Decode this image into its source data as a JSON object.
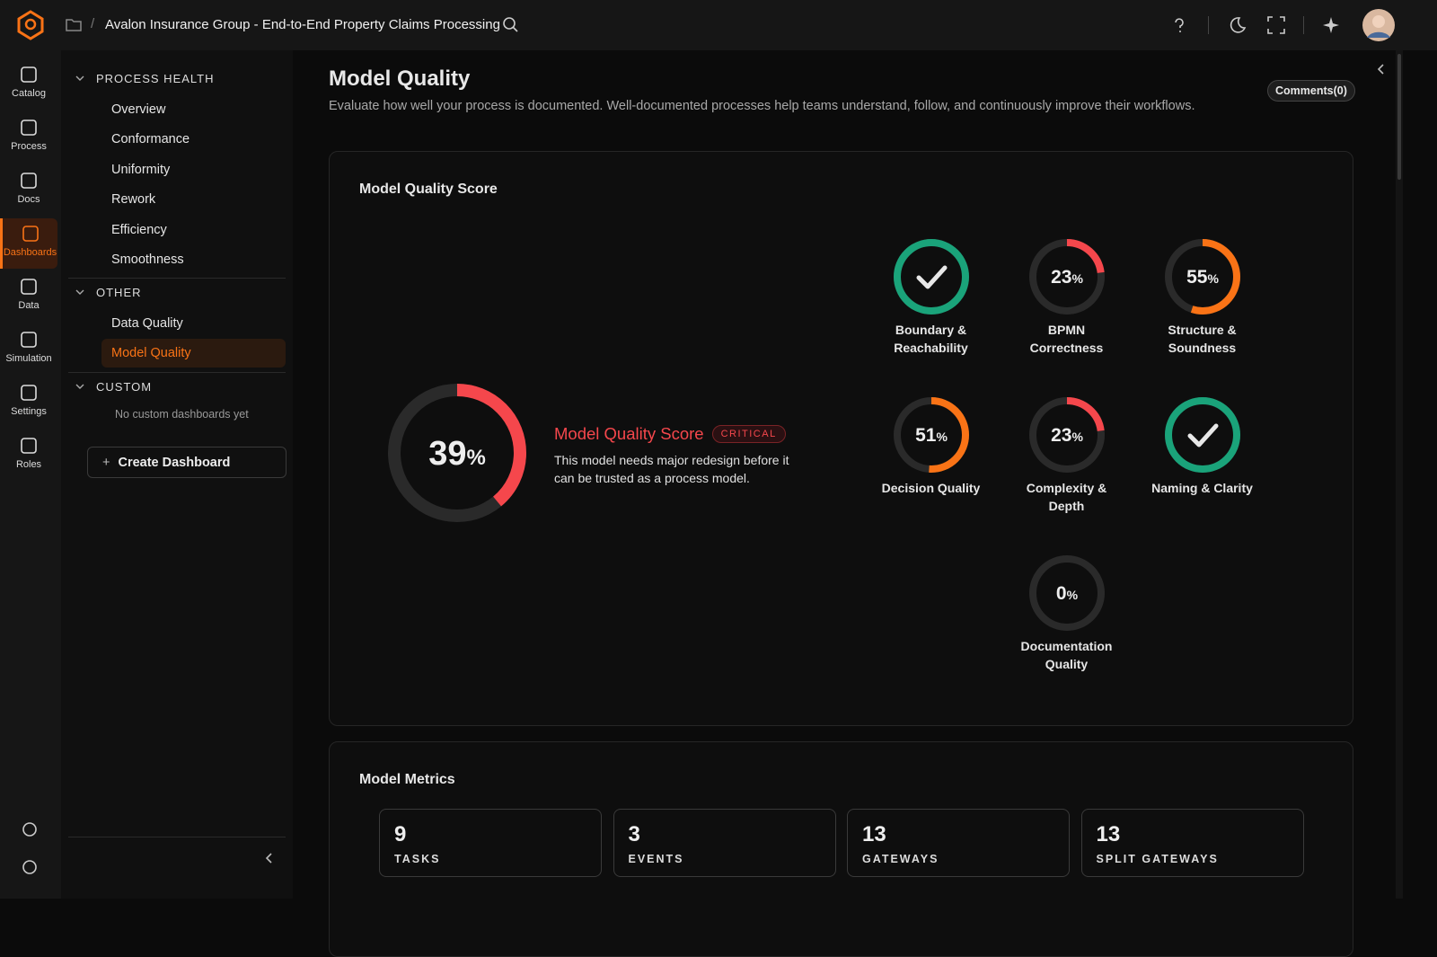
{
  "topbar": {
    "breadcrumb": "Avalon Insurance Group - End-to-End Property Claims Processing"
  },
  "rail": {
    "items": [
      "Catalog",
      "Process",
      "Docs",
      "Dashboards",
      "Data",
      "Simulation",
      "Settings",
      "Roles"
    ],
    "active": 3
  },
  "sidebar": {
    "sections": [
      {
        "title": "PROCESS HEALTH",
        "items": [
          "Overview",
          "Conformance",
          "Uniformity",
          "Rework",
          "Efficiency",
          "Smoothness"
        ]
      },
      {
        "title": "OTHER",
        "items": [
          "Data Quality",
          "Model Quality"
        ]
      },
      {
        "title": "CUSTOM",
        "empty": "No custom dashboards yet"
      }
    ],
    "active": [
      1,
      1
    ],
    "create_button": "Create Dashboard"
  },
  "page": {
    "title": "Model Quality",
    "description": "Evaluate how well your process is documented. Well-documented processes help teams understand, follow, and continuously improve their workflows.",
    "comments": "Comments(0)"
  },
  "score_card": {
    "title": "Model Quality Score",
    "score": {
      "value": 39,
      "unit": "%",
      "color": "#f5474c"
    },
    "heading": "Model Quality Score",
    "badge": "CRITICAL",
    "message": "This model needs major redesign before it can be trusted as a process model.",
    "gauges": [
      {
        "label": "Boundary & Reachability",
        "value": 100,
        "color": "#1aa37a"
      },
      {
        "label": "BPMN Correctness",
        "value": 23,
        "unit": "%",
        "color": "#f5474c"
      },
      {
        "label": "Structure & Soundness",
        "value": 55,
        "unit": "%",
        "color": "#f97316"
      },
      {
        "label": "Decision Quality",
        "value": 51,
        "unit": "%",
        "color": "#f97316"
      },
      {
        "label": "Complexity & Depth",
        "value": 23,
        "unit": "%",
        "color": "#f5474c"
      },
      {
        "label": "Naming & Clarity",
        "value": 100,
        "color": "#1aa37a"
      },
      {
        "label": "Documentation Quality",
        "value": 0,
        "unit": "%",
        "color": "#f5474c"
      }
    ]
  },
  "metrics": {
    "title": "Model Metrics",
    "items": [
      {
        "value": 9,
        "label": "TASKS"
      },
      {
        "value": 3,
        "label": "EVENTS"
      },
      {
        "value": 13,
        "label": "GATEWAYS"
      },
      {
        "value": 13,
        "label": "SPLIT GATEWAYS"
      }
    ]
  }
}
